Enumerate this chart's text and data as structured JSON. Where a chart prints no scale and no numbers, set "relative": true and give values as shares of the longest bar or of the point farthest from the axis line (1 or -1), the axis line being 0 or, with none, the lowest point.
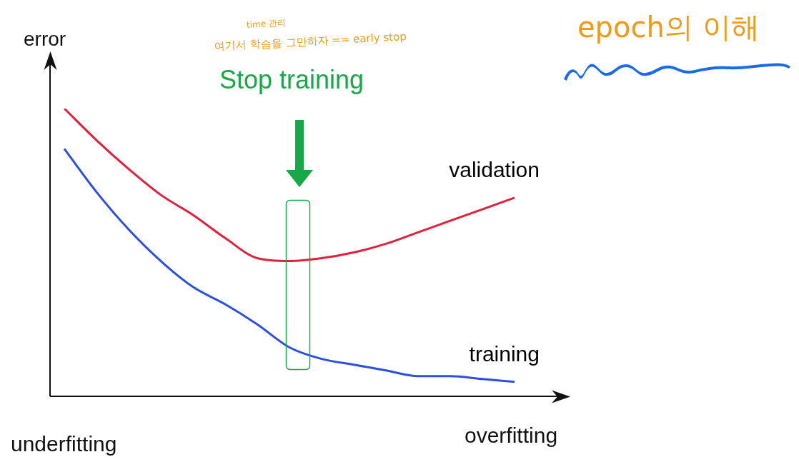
{
  "chart_data": {
    "type": "line",
    "relative": true,
    "ylabel": "error",
    "categories": [
      null,
      null,
      null,
      null,
      null,
      null,
      null,
      null,
      null,
      null,
      null,
      null,
      null,
      null,
      null
    ],
    "series": [
      {
        "name": "validation",
        "color": "#e0203c",
        "values": [
          1,
          0.89,
          0.79,
          0.7,
          0.63,
          0.55,
          0.48,
          0.47,
          0.48,
          0.5,
          0.53,
          0.57,
          0.61,
          0.65,
          0.69
        ]
      },
      {
        "name": "training",
        "color": "#2b4fe0",
        "values": [
          0.86,
          0.71,
          0.58,
          0.47,
          0.38,
          0.32,
          0.25,
          0.17,
          0.13,
          0.11,
          0.09,
          0.07,
          0.07,
          0.06,
          0.05
        ]
      }
    ],
    "annotations": [
      "Stop training",
      "time 관리",
      "여기서 학습을 그만하자 == early stop",
      "epoch의 이해",
      "underfitting",
      "overfitting"
    ],
    "legend": false,
    "grid": false,
    "marker": "none",
    "line_style": "solid"
  }
}
